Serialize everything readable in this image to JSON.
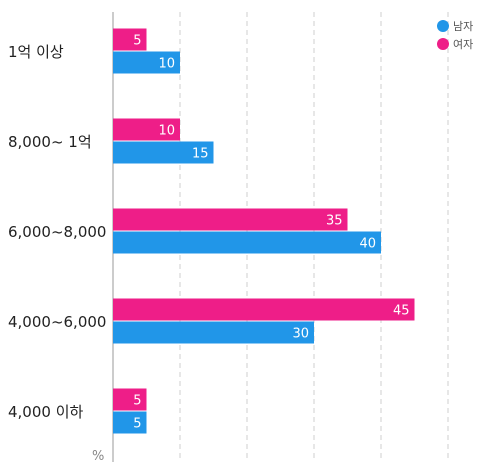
{
  "chart_data": {
    "type": "bar",
    "orientation": "horizontal",
    "categories": [
      "1억 이상",
      "8,000~ 1억",
      "6,000~8,000",
      "4,000~6,000",
      "4,000 이하"
    ],
    "series": [
      {
        "name": "여자",
        "color": "#ee1e88",
        "values": [
          5,
          10,
          35,
          45,
          5
        ]
      },
      {
        "name": "남자",
        "color": "#2196e8",
        "values": [
          10,
          15,
          40,
          30,
          5
        ]
      }
    ],
    "unit_label": "%",
    "xlim": [
      0,
      50
    ],
    "grid": true,
    "gridline_step": 10,
    "legend_position": "top-right",
    "legend_order": [
      "남자",
      "여자"
    ]
  }
}
